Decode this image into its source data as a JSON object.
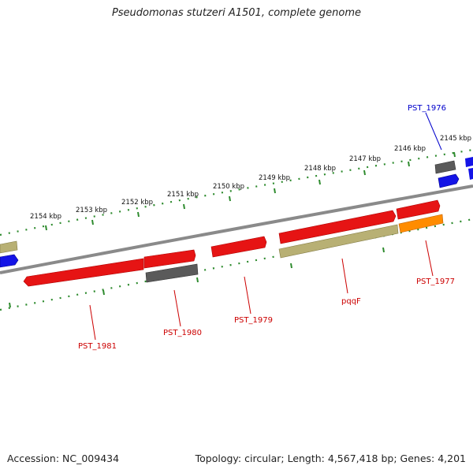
{
  "title": "Pseudomonas stutzeri A1501, complete genome",
  "footer": {
    "accession": "Accession: NC_009434",
    "summary": "Topology: circular; Length: 4,567,418 bp; Genes: 4,201"
  },
  "colors": {
    "backbone": "#8a8a8a",
    "tick_track": "#2e8b2e",
    "red": "#e61414",
    "gray": "#5a5a5a",
    "olive": "#b8b074",
    "orange": "#ff8c00",
    "blue": "#1414e6",
    "label_red": "#cc0000",
    "label_blue": "#0000cc"
  },
  "scale_ticks": [
    {
      "label": "2154 kbp"
    },
    {
      "label": "2153 kbp"
    },
    {
      "label": "2152 kbp"
    },
    {
      "label": "2151 kbp"
    },
    {
      "label": "2150 kbp"
    },
    {
      "label": "2149 kbp"
    },
    {
      "label": "2148 kbp"
    },
    {
      "label": "2147 kbp"
    },
    {
      "label": "2146 kbp"
    },
    {
      "label": "2145 kbp"
    }
  ],
  "genes": [
    {
      "name": "PST_1976",
      "color": "blue"
    },
    {
      "name": "PST_1977",
      "color": "red"
    },
    {
      "name": "pqqF",
      "color": "red"
    },
    {
      "name": "PST_1979",
      "color": "red"
    },
    {
      "name": "PST_1980",
      "color": "red"
    },
    {
      "name": "PST_1981",
      "color": "red"
    }
  ]
}
